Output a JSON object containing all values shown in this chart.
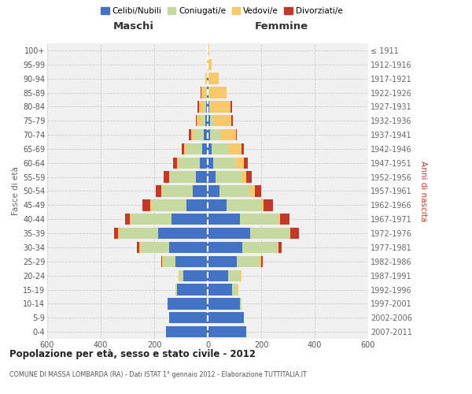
{
  "age_groups": [
    "0-4",
    "5-9",
    "10-14",
    "15-19",
    "20-24",
    "25-29",
    "30-34",
    "35-39",
    "40-44",
    "45-49",
    "50-54",
    "55-59",
    "60-64",
    "65-69",
    "70-74",
    "75-79",
    "80-84",
    "85-89",
    "90-94",
    "95-99",
    "100+"
  ],
  "birth_years": [
    "2007-2011",
    "2002-2006",
    "1997-2001",
    "1992-1996",
    "1987-1991",
    "1982-1986",
    "1977-1981",
    "1972-1976",
    "1967-1971",
    "1962-1966",
    "1957-1961",
    "1952-1956",
    "1947-1951",
    "1942-1946",
    "1937-1941",
    "1932-1936",
    "1927-1931",
    "1922-1926",
    "1917-1921",
    "1912-1916",
    "≤ 1911"
  ],
  "colors": {
    "celibi": "#4472c4",
    "coniugati": "#c5d9a0",
    "vedovi": "#f8c86a",
    "divorziati": "#c0392b"
  },
  "maschi": {
    "celibi": [
      155,
      145,
      150,
      115,
      90,
      120,
      145,
      185,
      135,
      80,
      55,
      45,
      30,
      20,
      15,
      10,
      5,
      3,
      2,
      1,
      1
    ],
    "coniugati": [
      0,
      0,
      0,
      5,
      15,
      45,
      105,
      145,
      150,
      130,
      115,
      95,
      80,
      60,
      35,
      15,
      8,
      3,
      0,
      0,
      0
    ],
    "vedovi": [
      0,
      0,
      0,
      0,
      5,
      5,
      5,
      5,
      5,
      5,
      5,
      5,
      5,
      8,
      12,
      15,
      20,
      18,
      8,
      2,
      0
    ],
    "divorziati": [
      0,
      0,
      0,
      0,
      0,
      5,
      10,
      15,
      20,
      30,
      20,
      20,
      15,
      10,
      8,
      5,
      5,
      2,
      0,
      0,
      0
    ]
  },
  "femmine": {
    "celibi": [
      145,
      135,
      120,
      90,
      75,
      110,
      130,
      160,
      120,
      70,
      45,
      30,
      20,
      15,
      10,
      8,
      5,
      3,
      2,
      1,
      1
    ],
    "coniugati": [
      0,
      0,
      5,
      20,
      45,
      85,
      130,
      145,
      145,
      130,
      115,
      95,
      85,
      65,
      40,
      15,
      5,
      2,
      0,
      0,
      0
    ],
    "vedovi": [
      0,
      0,
      0,
      5,
      5,
      5,
      5,
      5,
      5,
      10,
      15,
      20,
      30,
      45,
      55,
      65,
      75,
      65,
      40,
      15,
      5
    ],
    "divorziati": [
      0,
      0,
      0,
      0,
      0,
      5,
      10,
      30,
      35,
      35,
      25,
      20,
      15,
      10,
      5,
      5,
      5,
      2,
      0,
      0,
      0
    ]
  },
  "title": "Popolazione per età, sesso e stato civile - 2012",
  "subtitle": "COMUNE DI MASSA LOMBARDA (RA) - Dati ISTAT 1° gennaio 2012 - Elaborazione TUTTITALIA.IT",
  "maschi_label": "Maschi",
  "femmine_label": "Femmine",
  "ylabel_left": "Fasce di età",
  "ylabel_right": "Anni di nascita",
  "xlim": 600,
  "bg_color": "#f0f0f0",
  "grid_color": "#cccccc"
}
